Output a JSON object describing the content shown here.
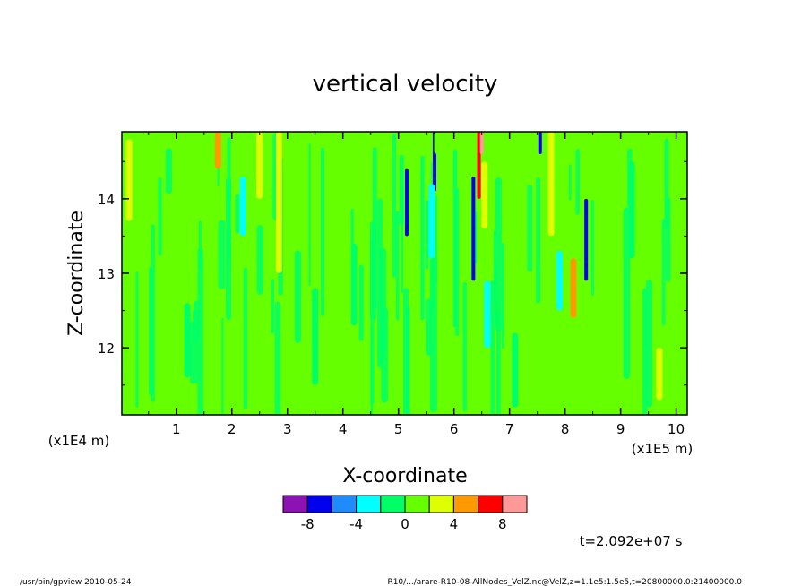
{
  "chart_data": {
    "type": "heatmap",
    "title": "vertical velocity",
    "xlabel": "X-coordinate",
    "ylabel": "Z-coordinate",
    "x_unit": "(x1E5 m)",
    "y_unit": "(x1E4 m)",
    "xlim": [
      0.02,
      10.2
    ],
    "ylim": [
      11.1,
      14.9
    ],
    "x_ticks": [
      "1",
      "2",
      "3",
      "4",
      "5",
      "6",
      "7",
      "8",
      "9",
      "10"
    ],
    "y_ticks": [
      "12",
      "13",
      "14"
    ],
    "time_label": "t=2.092e+07 s",
    "colorbar": {
      "levels": [
        -10,
        -8,
        -6,
        -4,
        -2,
        0,
        2,
        4,
        6,
        8,
        10
      ],
      "tick_labels": [
        "-8",
        "-4",
        "0",
        "4",
        "8"
      ],
      "colors": [
        "#8c12b4",
        "#0000ee",
        "#1e8cff",
        "#00ffff",
        "#00ff66",
        "#66ff00",
        "#ddff00",
        "#ff9900",
        "#ff0000",
        "#ff9999"
      ]
    },
    "background_color": "#66ff00",
    "features": [
      {
        "x": 5.15,
        "z0": 13.5,
        "z1": 14.4,
        "value": -7
      },
      {
        "x": 5.65,
        "z0": 14.1,
        "z1": 14.9,
        "value": -7
      },
      {
        "x": 6.35,
        "z0": 12.9,
        "z1": 14.3,
        "value": -7
      },
      {
        "x": 8.38,
        "z0": 12.9,
        "z1": 14.0,
        "value": -7
      },
      {
        "x": 7.55,
        "z0": 14.6,
        "z1": 14.9,
        "value": -7
      },
      {
        "x": 6.45,
        "z0": 14.0,
        "z1": 14.9,
        "value": 7
      },
      {
        "x": 6.5,
        "z0": 14.6,
        "z1": 14.9,
        "value": 9
      },
      {
        "x": 5.7,
        "z0": 14.6,
        "z1": 14.9,
        "value": 1
      },
      {
        "x": 2.2,
        "z0": 13.5,
        "z1": 14.3,
        "value": -3
      },
      {
        "x": 5.6,
        "z0": 13.2,
        "z1": 14.2,
        "value": -3
      },
      {
        "x": 6.6,
        "z0": 12.0,
        "z1": 12.9,
        "value": -3
      },
      {
        "x": 7.9,
        "z0": 12.5,
        "z1": 13.3,
        "value": -3
      },
      {
        "x": 2.85,
        "z0": 13.0,
        "z1": 14.9,
        "value": 3
      },
      {
        "x": 2.5,
        "z0": 14.0,
        "z1": 14.9,
        "value": 3
      },
      {
        "x": 7.75,
        "z0": 13.5,
        "z1": 14.9,
        "value": 3
      },
      {
        "x": 8.15,
        "z0": 12.4,
        "z1": 13.2,
        "value": 5
      },
      {
        "x": 6.55,
        "z0": 13.6,
        "z1": 14.5,
        "value": 3
      },
      {
        "x": 1.75,
        "z0": 14.4,
        "z1": 14.9,
        "value": 5
      },
      {
        "x": 0.15,
        "z0": 13.7,
        "z1": 14.8,
        "value": 3
      },
      {
        "x": 9.7,
        "z0": 11.3,
        "z1": 12.0,
        "value": 3
      },
      {
        "x": 4.2,
        "z0": 12.3,
        "z1": 13.4,
        "value": -1
      },
      {
        "x": 7.1,
        "z0": 11.2,
        "z1": 12.2,
        "value": -1
      },
      {
        "x": 3.5,
        "z0": 11.5,
        "z1": 12.8,
        "value": -1
      },
      {
        "x": 9.2,
        "z0": 13.2,
        "z1": 14.5,
        "value": -1
      },
      {
        "x": 1.2,
        "z0": 11.6,
        "z1": 12.6,
        "value": -1
      }
    ]
  },
  "footer": {
    "left": "/usr/bin/gpview   2010-05-24",
    "right": "R10/.../arare-R10-08-AllNodes_VelZ.nc@VelZ,z=1.1e5:1.5e5,t=20800000.0:21400000.0"
  }
}
